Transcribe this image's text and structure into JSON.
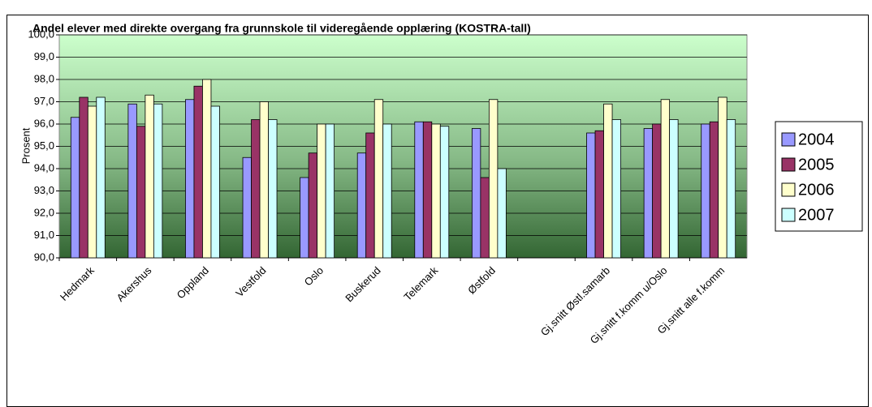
{
  "chart_data": {
    "type": "bar",
    "title": "Andel elever med direkte overgang fra grunnskole til videregående opplæring (KOSTRA-tall)",
    "ylabel": "Prosent",
    "categories": [
      "Hedmark",
      "Akershus",
      "Oppland",
      "Vestfold",
      "Oslo",
      "Buskerud",
      "Telemark",
      "Østfold",
      null,
      "Gj.snitt Østl.samarb",
      "Gj.snitt f.komm u/Oslo",
      "Gj.snitt alle f.komm"
    ],
    "series": [
      {
        "name": "2004",
        "color": "#9999ff",
        "values": [
          96.3,
          96.9,
          97.1,
          94.5,
          93.6,
          94.7,
          96.1,
          95.8,
          null,
          95.6,
          95.8,
          96.0
        ]
      },
      {
        "name": "2005",
        "color": "#993366",
        "values": [
          97.2,
          95.9,
          97.7,
          96.2,
          94.7,
          95.6,
          96.1,
          93.6,
          null,
          95.7,
          96.0,
          96.1
        ]
      },
      {
        "name": "2006",
        "color": "#ffffcc",
        "values": [
          96.8,
          97.3,
          98.0,
          97.0,
          96.0,
          97.1,
          96.0,
          97.1,
          null,
          96.9,
          97.1,
          97.2
        ]
      },
      {
        "name": "2007",
        "color": "#ccffff",
        "values": [
          97.2,
          96.9,
          96.8,
          96.2,
          96.0,
          96.0,
          95.9,
          94.0,
          null,
          96.2,
          96.2,
          96.2
        ]
      }
    ],
    "ylim": [
      90,
      100
    ],
    "yticks": [
      {
        "value": 90,
        "label": "90,0"
      },
      {
        "value": 91,
        "label": "91,0"
      },
      {
        "value": 92,
        "label": "92,0"
      },
      {
        "value": 93,
        "label": "93,0"
      },
      {
        "value": 94,
        "label": "94,0"
      },
      {
        "value": 95,
        "label": "95,0"
      },
      {
        "value": 96,
        "label": "96,0"
      },
      {
        "value": 97,
        "label": "97,0"
      },
      {
        "value": 98,
        "label": "98,0"
      },
      {
        "value": 99,
        "label": "99,0"
      },
      {
        "value": 100,
        "label": "100,0"
      }
    ],
    "grid": true,
    "legend": "right"
  }
}
